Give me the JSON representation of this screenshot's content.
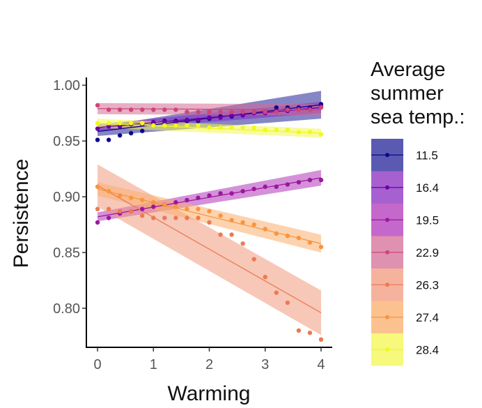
{
  "chart_data": {
    "type": "scatter",
    "xlabel": "Warming",
    "ylabel": "Persistence",
    "xlim": [
      -0.2,
      4.2
    ],
    "ylim": [
      0.765,
      1.007
    ],
    "xticks": [
      0,
      1,
      2,
      3,
      4
    ],
    "xtick_labels": [
      "0",
      "1",
      "2",
      "3",
      "4"
    ],
    "yticks": [
      0.8,
      0.85,
      0.9,
      0.95,
      1.0
    ],
    "ytick_labels": [
      "0.80",
      "0.85",
      "0.90",
      "0.95",
      "1.00"
    ],
    "grid": false,
    "legend": {
      "title_lines": [
        "Average",
        "summer",
        "sea temp.:"
      ],
      "position": "right"
    },
    "series": [
      {
        "name": "11.5",
        "color": "#0d0887",
        "band_color": "#232398",
        "x": [
          0,
          0.2,
          0.4,
          0.6,
          0.8,
          1.0,
          1.2,
          1.4,
          1.6,
          1.8,
          2.0,
          2.2,
          2.4,
          2.6,
          2.8,
          3.0,
          3.2,
          3.4,
          3.6,
          3.8,
          4.0
        ],
        "y": [
          0.951,
          0.951,
          0.955,
          0.957,
          0.959,
          0.966,
          0.968,
          0.968,
          0.968,
          0.968,
          0.97,
          0.972,
          0.972,
          0.974,
          0.976,
          0.976,
          0.98,
          0.98,
          0.98,
          0.98,
          0.983
        ],
        "fit": [
          0.9585,
          0.9825
        ],
        "band": [
          [
            0.9545,
            0.9625
          ],
          [
            0.97,
            0.995
          ]
        ]
      },
      {
        "name": "16.4",
        "color": "#6a00a8",
        "band_color": "#8a2bc0",
        "x": [
          0,
          0.2,
          0.4,
          0.6,
          0.8,
          1.0,
          1.2,
          1.4,
          1.6,
          1.8,
          2.0,
          2.2,
          2.4,
          2.6,
          2.8,
          3.0,
          3.2,
          3.4,
          3.6,
          3.8,
          4.0
        ],
        "y": [
          0.961,
          0.963,
          0.963,
          0.965,
          0.965,
          0.967,
          0.967,
          0.967,
          0.969,
          0.969,
          0.971,
          0.971,
          0.973,
          0.973,
          0.975,
          0.975,
          0.977,
          0.977,
          0.979,
          0.979,
          0.981
        ],
        "fit": [
          0.962,
          0.98
        ],
        "band": [
          [
            0.959,
            0.965
          ],
          [
            0.975,
            0.985
          ]
        ]
      },
      {
        "name": "19.5",
        "color": "#9c179e",
        "band_color": "#b136b9",
        "x": [
          0,
          0.2,
          0.4,
          0.6,
          0.8,
          1.0,
          1.2,
          1.4,
          1.6,
          1.8,
          2.0,
          2.2,
          2.4,
          2.6,
          2.8,
          3.0,
          3.2,
          3.4,
          3.6,
          3.8,
          4.0
        ],
        "y": [
          0.877,
          0.881,
          0.885,
          0.887,
          0.889,
          0.891,
          0.893,
          0.895,
          0.897,
          0.899,
          0.901,
          0.903,
          0.903,
          0.905,
          0.907,
          0.909,
          0.909,
          0.911,
          0.913,
          0.915,
          0.915
        ],
        "fit": [
          0.882,
          0.917
        ],
        "band": [
          [
            0.878,
            0.886
          ],
          [
            0.91,
            0.924
          ]
        ]
      },
      {
        "name": "22.9",
        "color": "#cc4778",
        "band_color": "#d46c95",
        "x": [
          0,
          0.2,
          0.4,
          0.6,
          0.8,
          1.0,
          1.2,
          1.4,
          1.6,
          1.8,
          2.0,
          2.2,
          2.4,
          2.6,
          2.8,
          3.0,
          3.2,
          3.4,
          3.6,
          3.8,
          4.0
        ],
        "y": [
          0.982,
          0.978,
          0.978,
          0.978,
          0.978,
          0.978,
          0.978,
          0.978,
          0.976,
          0.976,
          0.976,
          0.976,
          0.976,
          0.976,
          0.976,
          0.976,
          0.976,
          0.978,
          0.978,
          0.978,
          0.98
        ],
        "fit": [
          0.979,
          0.978
        ],
        "band": [
          [
            0.974,
            0.984
          ],
          [
            0.973,
            0.983
          ]
        ]
      },
      {
        "name": "26.3",
        "color": "#ed7953",
        "band_color": "#f19a7d",
        "x": [
          0,
          0.2,
          0.4,
          0.6,
          0.8,
          1.0,
          1.2,
          1.4,
          1.6,
          1.8,
          2.0,
          2.2,
          2.4,
          2.6,
          2.8,
          3.0,
          3.2,
          3.4,
          3.6,
          3.8,
          4.0
        ],
        "y": [
          0.889,
          0.889,
          0.887,
          0.887,
          0.883,
          0.881,
          0.881,
          0.881,
          0.881,
          0.881,
          0.877,
          0.866,
          0.866,
          0.858,
          0.844,
          0.828,
          0.814,
          0.805,
          0.78,
          0.778,
          0.772
        ],
        "fit": [
          0.91,
          0.796
        ],
        "band": [
          [
            0.891,
            0.929
          ],
          [
            0.776,
            0.816
          ]
        ]
      },
      {
        "name": "27.4",
        "color": "#f89540",
        "band_color": "#f9ae6b",
        "x": [
          0,
          0.2,
          0.4,
          0.6,
          0.8,
          1.0,
          1.2,
          1.4,
          1.6,
          1.8,
          2.0,
          2.2,
          2.4,
          2.6,
          2.8,
          3.0,
          3.2,
          3.4,
          3.6,
          3.8,
          4.0
        ],
        "y": [
          0.909,
          0.905,
          0.901,
          0.899,
          0.897,
          0.895,
          0.893,
          0.891,
          0.889,
          0.889,
          0.887,
          0.883,
          0.879,
          0.877,
          0.875,
          0.871,
          0.867,
          0.865,
          0.863,
          0.859,
          0.855
        ],
        "fit": [
          0.907,
          0.858
        ],
        "band": [
          [
            0.901,
            0.913
          ],
          [
            0.85,
            0.866
          ]
        ]
      },
      {
        "name": "28.4",
        "color": "#f0f921",
        "band_color": "#f3f74f",
        "x": [
          0,
          0.2,
          0.4,
          0.6,
          0.8,
          1.0,
          1.2,
          1.4,
          1.6,
          1.8,
          2.0,
          2.2,
          2.4,
          2.6,
          2.8,
          3.0,
          3.2,
          3.4,
          3.6,
          3.8,
          4.0
        ],
        "y": [
          0.966,
          0.966,
          0.966,
          0.966,
          0.966,
          0.964,
          0.964,
          0.964,
          0.964,
          0.964,
          0.962,
          0.962,
          0.962,
          0.962,
          0.962,
          0.96,
          0.96,
          0.96,
          0.958,
          0.958,
          0.956
        ],
        "fit": [
          0.966,
          0.957
        ],
        "band": [
          [
            0.962,
            0.97
          ],
          [
            0.953,
            0.961
          ]
        ]
      }
    ]
  }
}
